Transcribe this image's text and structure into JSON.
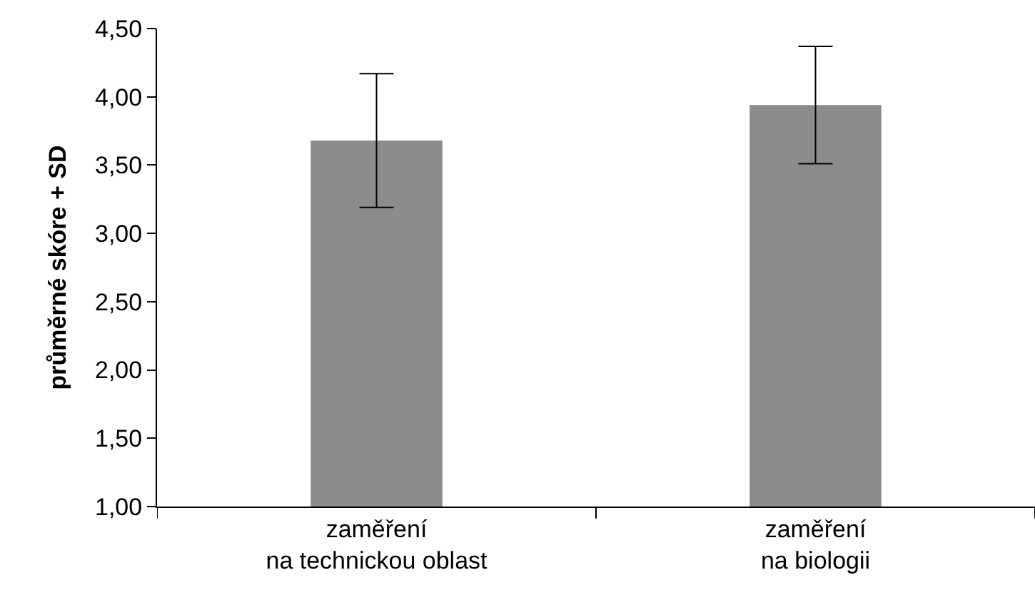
{
  "chart_data": {
    "type": "bar",
    "ylabel": "průměrné skóre + SD",
    "categories": [
      "zaměření\nna technickou oblast",
      "zaměření\nna biologii"
    ],
    "values": [
      3.68,
      3.94
    ],
    "color": "#8c8c8c",
    "errors": [
      0.49,
      0.43
    ],
    "ylim": [
      1,
      4.5
    ],
    "yticks": [
      {
        "value": 1,
        "label": "1,00"
      },
      {
        "value": 1.5,
        "label": "1,50"
      },
      {
        "value": 2,
        "label": "2,00"
      },
      {
        "value": 2.5,
        "label": "2,50"
      },
      {
        "value": 3,
        "label": "3,00"
      },
      {
        "value": 3.5,
        "label": "3,50"
      },
      {
        "value": 4,
        "label": "4,00"
      },
      {
        "value": 4.5,
        "label": "4,50"
      }
    ],
    "legend": false
  }
}
